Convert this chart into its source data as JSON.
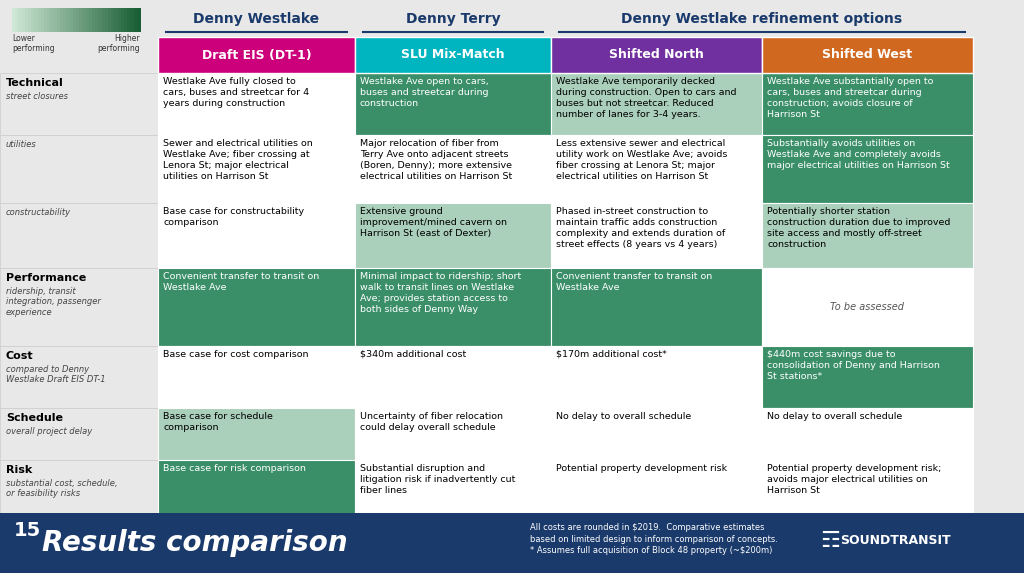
{
  "title_denny_westlake": "Denny Westlake",
  "title_denny_terry": "Denny Terry",
  "title_refinement": "Denny Westlake refinement options",
  "col_headers": [
    "Draft EIS (DT-1)",
    "SLU Mix-Match",
    "Shifted North",
    "Shifted West"
  ],
  "col_header_colors": [
    "#cc007a",
    "#00b5c0",
    "#7030a0",
    "#d06820"
  ],
  "row_labels": [
    {
      "bold": "Technical",
      "italic": "street closures"
    },
    {
      "bold": "",
      "italic": "utilities"
    },
    {
      "bold": "",
      "italic": "constructability"
    },
    {
      "bold": "Performance",
      "italic": "ridership, transit\nintegration, passenger\nexperience"
    },
    {
      "bold": "Cost",
      "italic": "compared to Denny\nWestlake Draft EIS DT-1"
    },
    {
      "bold": "Schedule",
      "italic": "overall project delay"
    },
    {
      "bold": "Risk",
      "italic": "substantial cost, schedule,\nor feasibility risks"
    }
  ],
  "cell_data": [
    [
      {
        "text": "Westlake Ave fully closed to\ncars, buses and streetcar for 4\nyears during construction",
        "bg": "#ffffff",
        "fg": "#000000"
      },
      {
        "text": "Westlake Ave open to cars,\nbuses and streetcar during\nconstruction",
        "bg": "#3a8f68",
        "fg": "#ffffff"
      },
      {
        "text": "Westlake Ave temporarily decked\nduring construction. Open to cars and\nbuses but not streetcar. Reduced\nnumber of lanes for 3-4 years.",
        "bg": "#aacfba",
        "fg": "#000000"
      },
      {
        "text": "Westlake Ave substantially open to\ncars, buses and streetcar during\nconstruction; avoids closure of\nHarrison St",
        "bg": "#3a8f68",
        "fg": "#ffffff"
      }
    ],
    [
      {
        "text": "Sewer and electrical utilities on\nWestlake Ave; fiber crossing at\nLenora St; major electrical\nutilities on Harrison St",
        "bg": "#ffffff",
        "fg": "#000000"
      },
      {
        "text": "Major relocation of fiber from\nTerry Ave onto adjacent streets\n(Boren, Denny); more extensive\nelectrical utilities on Harrison St",
        "bg": "#ffffff",
        "fg": "#000000"
      },
      {
        "text": "Less extensive sewer and electrical\nutility work on Westlake Ave; avoids\nfiber crossing at Lenora St; major\nelectrical utilities on Harrison St",
        "bg": "#ffffff",
        "fg": "#000000"
      },
      {
        "text": "Substantially avoids utilities on\nWestlake Ave and completely avoids\nmajor electrical utilities on Harrison St",
        "bg": "#3a8f68",
        "fg": "#ffffff"
      }
    ],
    [
      {
        "text": "Base case for constructability\ncomparison",
        "bg": "#ffffff",
        "fg": "#000000"
      },
      {
        "text": "Extensive ground\nimprovement/mined cavern on\nHarrison St (east of Dexter)",
        "bg": "#aacfba",
        "fg": "#000000"
      },
      {
        "text": "Phased in-street construction to\nmaintain traffic adds construction\ncomplexity and extends duration of\nstreet effects (8 years vs 4 years)",
        "bg": "#ffffff",
        "fg": "#000000"
      },
      {
        "text": "Potentially shorter station\nconstruction duration due to improved\nsite access and mostly off-street\nconstruction",
        "bg": "#aacfba",
        "fg": "#000000"
      }
    ],
    [
      {
        "text": "Convenient transfer to transit on\nWestlake Ave",
        "bg": "#3a8f68",
        "fg": "#ffffff"
      },
      {
        "text": "Minimal impact to ridership; short\nwalk to transit lines on Westlake\nAve; provides station access to\nboth sides of Denny Way",
        "bg": "#3a8f68",
        "fg": "#ffffff"
      },
      {
        "text": "Convenient transfer to transit on\nWestlake Ave",
        "bg": "#3a8f68",
        "fg": "#ffffff"
      },
      {
        "text": "To be assessed",
        "bg": "#ffffff",
        "fg": "#555555",
        "italic": true,
        "center": true
      }
    ],
    [
      {
        "text": "Base case for cost comparison",
        "bg": "#ffffff",
        "fg": "#000000"
      },
      {
        "text": "$340m additional cost",
        "bg": "#ffffff",
        "fg": "#000000"
      },
      {
        "text": "$170m additional cost*",
        "bg": "#ffffff",
        "fg": "#000000"
      },
      {
        "text": "$440m cost savings due to\nconsolidation of Denny and Harrison\nSt stations*",
        "bg": "#3a8f68",
        "fg": "#ffffff"
      }
    ],
    [
      {
        "text": "Base case for schedule\ncomparison",
        "bg": "#aacfba",
        "fg": "#000000"
      },
      {
        "text": "Uncertainty of fiber relocation\ncould delay overall schedule",
        "bg": "#ffffff",
        "fg": "#000000"
      },
      {
        "text": "No delay to overall schedule",
        "bg": "#ffffff",
        "fg": "#000000"
      },
      {
        "text": "No delay to overall schedule",
        "bg": "#ffffff",
        "fg": "#000000"
      }
    ],
    [
      {
        "text": "Base case for risk comparison",
        "bg": "#3a8f68",
        "fg": "#ffffff"
      },
      {
        "text": "Substantial disruption and\nlitigation risk if inadvertently cut\nfiber lines",
        "bg": "#ffffff",
        "fg": "#000000"
      },
      {
        "text": "Potential property development risk",
        "bg": "#ffffff",
        "fg": "#000000"
      },
      {
        "text": "Potential property development risk;\navoids major electrical utilities on\nHarrison St",
        "bg": "#ffffff",
        "fg": "#000000"
      }
    ]
  ],
  "footer_bg": "#1a3a6b",
  "footer_num": "15",
  "footer_title": "Results comparison",
  "footer_note": "All costs are rounded in $2019.  Comparative estimates\nbased on limited design to inform comparison of concepts.\n* Assumes full acquisition of Block 48 property (~$200m)",
  "table_bg": "#e0ece5",
  "left_bg": "#e8e8e8",
  "header_title_color": "#1a3a6b"
}
